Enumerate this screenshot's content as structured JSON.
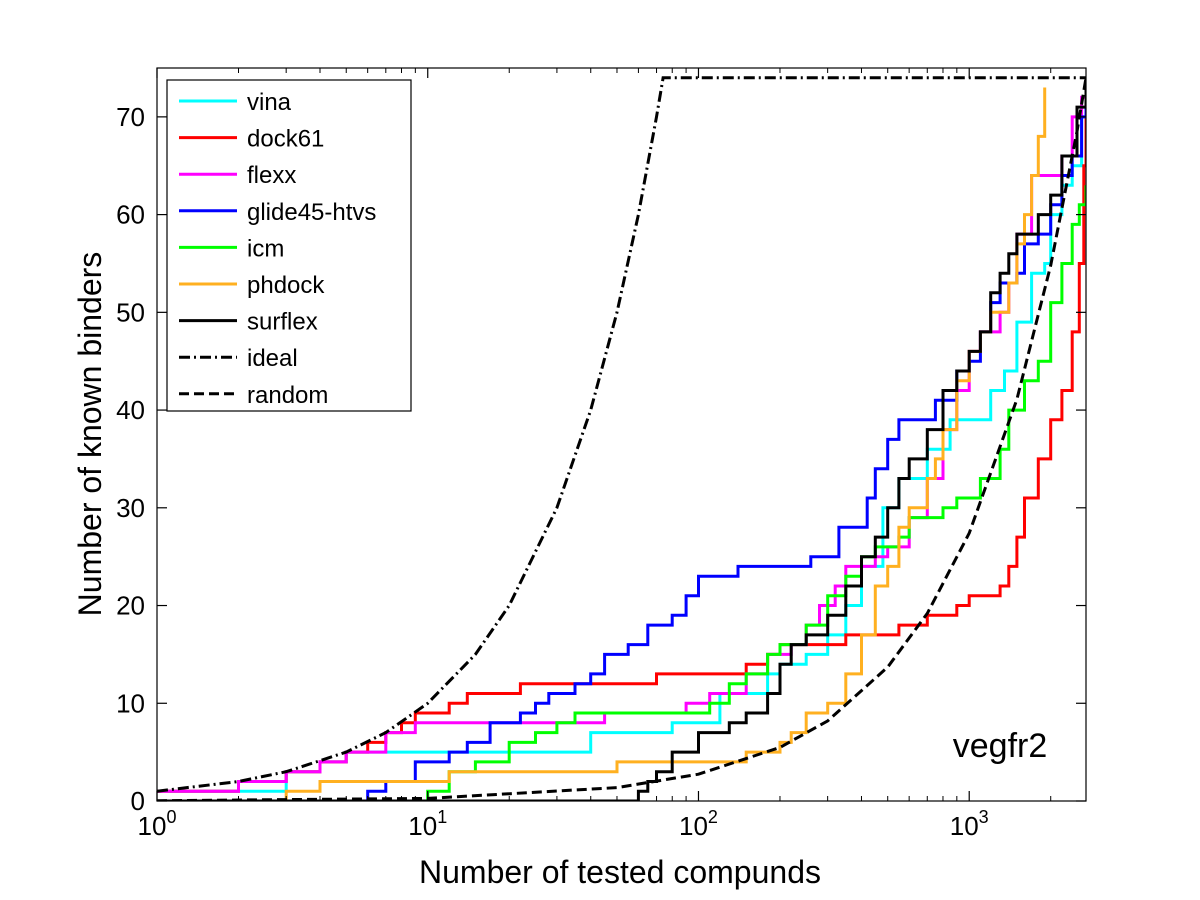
{
  "chart_data": {
    "type": "line",
    "title": "",
    "xlabel": "Number of tested compunds",
    "ylabel": "Number of known binders",
    "annotation": "vegfr2",
    "x_scale": "log",
    "xlim": [
      1,
      2700
    ],
    "ylim": [
      0,
      75
    ],
    "x_ticks": [
      {
        "value": 1,
        "base": "10",
        "exp": "0"
      },
      {
        "value": 10,
        "base": "10",
        "exp": "1"
      },
      {
        "value": 100,
        "base": "10",
        "exp": "2"
      },
      {
        "value": 1000,
        "base": "10",
        "exp": "3"
      }
    ],
    "y_ticks": [
      0,
      10,
      20,
      30,
      40,
      50,
      60,
      70
    ],
    "grid": false,
    "legend_position": "top-left",
    "series": [
      {
        "name": "vina",
        "color": "#00ffff",
        "dash": "solid",
        "points": [
          [
            1,
            1
          ],
          [
            3,
            3
          ],
          [
            4,
            4
          ],
          [
            5,
            5
          ],
          [
            20,
            5
          ],
          [
            40,
            7
          ],
          [
            60,
            7
          ],
          [
            80,
            8
          ],
          [
            100,
            8
          ],
          [
            120,
            11
          ],
          [
            150,
            11
          ],
          [
            180,
            13
          ],
          [
            200,
            14
          ],
          [
            250,
            15
          ],
          [
            300,
            17
          ],
          [
            350,
            20
          ],
          [
            400,
            24
          ],
          [
            450,
            24
          ],
          [
            480,
            30
          ],
          [
            550,
            33
          ],
          [
            700,
            36
          ],
          [
            850,
            39
          ],
          [
            1000,
            39
          ],
          [
            1200,
            42
          ],
          [
            1350,
            44
          ],
          [
            1500,
            49
          ],
          [
            1700,
            54
          ],
          [
            1900,
            55
          ],
          [
            2000,
            60
          ],
          [
            2200,
            63
          ],
          [
            2400,
            65
          ],
          [
            2600,
            70
          ],
          [
            2700,
            73
          ]
        ]
      },
      {
        "name": "dock61",
        "color": "#ff0000",
        "dash": "solid",
        "points": [
          [
            1,
            1
          ],
          [
            2,
            2
          ],
          [
            3,
            3
          ],
          [
            4,
            4
          ],
          [
            5,
            5
          ],
          [
            6,
            6
          ],
          [
            7,
            7
          ],
          [
            8,
            8
          ],
          [
            9,
            9
          ],
          [
            12,
            10
          ],
          [
            14,
            11
          ],
          [
            18,
            11
          ],
          [
            22,
            12
          ],
          [
            40,
            12
          ],
          [
            70,
            13
          ],
          [
            130,
            13
          ],
          [
            150,
            14
          ],
          [
            180,
            15
          ],
          [
            200,
            16
          ],
          [
            300,
            16
          ],
          [
            350,
            17
          ],
          [
            500,
            17
          ],
          [
            550,
            18
          ],
          [
            700,
            19
          ],
          [
            800,
            19
          ],
          [
            900,
            20
          ],
          [
            1000,
            21
          ],
          [
            1200,
            21
          ],
          [
            1300,
            22
          ],
          [
            1400,
            24
          ],
          [
            1500,
            27
          ],
          [
            1600,
            31
          ],
          [
            1800,
            35
          ],
          [
            2000,
            39
          ],
          [
            2200,
            42
          ],
          [
            2400,
            48
          ],
          [
            2550,
            55
          ],
          [
            2650,
            65
          ],
          [
            2700,
            74
          ]
        ]
      },
      {
        "name": "flexx",
        "color": "#ff00ff",
        "dash": "solid",
        "points": [
          [
            1,
            1
          ],
          [
            2,
            2
          ],
          [
            3,
            3
          ],
          [
            4,
            4
          ],
          [
            5,
            5
          ],
          [
            7,
            7
          ],
          [
            9,
            8
          ],
          [
            40,
            8
          ],
          [
            45,
            9
          ],
          [
            80,
            9
          ],
          [
            90,
            10
          ],
          [
            110,
            11
          ],
          [
            150,
            13
          ],
          [
            180,
            15
          ],
          [
            220,
            16
          ],
          [
            250,
            18
          ],
          [
            280,
            20
          ],
          [
            320,
            22
          ],
          [
            350,
            24
          ],
          [
            450,
            25
          ],
          [
            500,
            26
          ],
          [
            600,
            29
          ],
          [
            700,
            33
          ],
          [
            800,
            38
          ],
          [
            900,
            42
          ],
          [
            1000,
            46
          ],
          [
            1100,
            48
          ],
          [
            1300,
            50
          ],
          [
            1400,
            53
          ],
          [
            1500,
            58
          ],
          [
            1700,
            64
          ],
          [
            2000,
            64
          ],
          [
            2200,
            66
          ],
          [
            2400,
            70
          ],
          [
            2600,
            72
          ],
          [
            2700,
            74
          ]
        ]
      },
      {
        "name": "glide45-htvs",
        "color": "#0000ff",
        "dash": "solid",
        "points": [
          [
            1,
            0
          ],
          [
            5,
            0
          ],
          [
            6,
            1
          ],
          [
            7,
            2
          ],
          [
            9,
            4
          ],
          [
            12,
            5
          ],
          [
            14,
            6
          ],
          [
            17,
            8
          ],
          [
            22,
            9
          ],
          [
            25,
            10
          ],
          [
            28,
            11
          ],
          [
            35,
            12
          ],
          [
            40,
            13
          ],
          [
            45,
            15
          ],
          [
            55,
            16
          ],
          [
            65,
            18
          ],
          [
            80,
            19
          ],
          [
            90,
            21
          ],
          [
            100,
            23
          ],
          [
            120,
            23
          ],
          [
            140,
            24
          ],
          [
            250,
            24
          ],
          [
            260,
            25
          ],
          [
            300,
            25
          ],
          [
            330,
            28
          ],
          [
            400,
            28
          ],
          [
            420,
            31
          ],
          [
            450,
            34
          ],
          [
            500,
            37
          ],
          [
            550,
            39
          ],
          [
            700,
            39
          ],
          [
            750,
            41
          ],
          [
            900,
            44
          ],
          [
            1000,
            45
          ],
          [
            1100,
            48
          ],
          [
            1200,
            51
          ],
          [
            1300,
            53
          ],
          [
            1500,
            54
          ],
          [
            1600,
            57
          ],
          [
            1800,
            58
          ],
          [
            2000,
            61
          ],
          [
            2200,
            64
          ],
          [
            2400,
            66
          ],
          [
            2600,
            70
          ],
          [
            2700,
            74
          ]
        ]
      },
      {
        "name": "icm",
        "color": "#00ff00",
        "dash": "solid",
        "points": [
          [
            1,
            0
          ],
          [
            9,
            0
          ],
          [
            10,
            1
          ],
          [
            12,
            3
          ],
          [
            15,
            4
          ],
          [
            20,
            6
          ],
          [
            25,
            7
          ],
          [
            30,
            8
          ],
          [
            35,
            9
          ],
          [
            90,
            9
          ],
          [
            110,
            10
          ],
          [
            130,
            12
          ],
          [
            150,
            13
          ],
          [
            180,
            15
          ],
          [
            200,
            16
          ],
          [
            250,
            18
          ],
          [
            300,
            21
          ],
          [
            350,
            23
          ],
          [
            400,
            25
          ],
          [
            450,
            26
          ],
          [
            550,
            27
          ],
          [
            600,
            29
          ],
          [
            800,
            30
          ],
          [
            900,
            31
          ],
          [
            1100,
            33
          ],
          [
            1300,
            36
          ],
          [
            1400,
            40
          ],
          [
            1600,
            43
          ],
          [
            1800,
            45
          ],
          [
            2000,
            51
          ],
          [
            2200,
            55
          ],
          [
            2400,
            59
          ],
          [
            2550,
            61
          ],
          [
            2700,
            63
          ]
        ]
      },
      {
        "name": "phdock",
        "color": "#ffb020",
        "dash": "solid",
        "points": [
          [
            1,
            0
          ],
          [
            3,
            1
          ],
          [
            4,
            2
          ],
          [
            10,
            2
          ],
          [
            12,
            3
          ],
          [
            20,
            3
          ],
          [
            25,
            3
          ],
          [
            50,
            4
          ],
          [
            100,
            4
          ],
          [
            120,
            4
          ],
          [
            150,
            5
          ],
          [
            180,
            5
          ],
          [
            200,
            6
          ],
          [
            220,
            7
          ],
          [
            250,
            9
          ],
          [
            300,
            10
          ],
          [
            350,
            13
          ],
          [
            400,
            17
          ],
          [
            450,
            22
          ],
          [
            500,
            24
          ],
          [
            550,
            28
          ],
          [
            600,
            30
          ],
          [
            700,
            33
          ],
          [
            750,
            35
          ],
          [
            800,
            38
          ],
          [
            900,
            43
          ],
          [
            1000,
            46
          ],
          [
            1100,
            48
          ],
          [
            1200,
            50
          ],
          [
            1400,
            53
          ],
          [
            1500,
            57
          ],
          [
            1600,
            60
          ],
          [
            1700,
            64
          ],
          [
            1800,
            68
          ],
          [
            1900,
            73
          ]
        ]
      },
      {
        "name": "surflex",
        "color": "#000000",
        "dash": "solid",
        "points": [
          [
            1,
            0
          ],
          [
            55,
            0
          ],
          [
            60,
            1
          ],
          [
            65,
            2
          ],
          [
            70,
            3
          ],
          [
            80,
            5
          ],
          [
            100,
            7
          ],
          [
            130,
            8
          ],
          [
            150,
            9
          ],
          [
            180,
            11
          ],
          [
            200,
            14
          ],
          [
            220,
            16
          ],
          [
            250,
            17
          ],
          [
            300,
            19
          ],
          [
            350,
            22
          ],
          [
            400,
            25
          ],
          [
            450,
            27
          ],
          [
            500,
            30
          ],
          [
            550,
            33
          ],
          [
            600,
            35
          ],
          [
            700,
            38
          ],
          [
            800,
            42
          ],
          [
            900,
            44
          ],
          [
            1000,
            46
          ],
          [
            1100,
            48
          ],
          [
            1200,
            52
          ],
          [
            1300,
            54
          ],
          [
            1400,
            56
          ],
          [
            1500,
            58
          ],
          [
            1700,
            58
          ],
          [
            1800,
            60
          ],
          [
            2000,
            62
          ],
          [
            2200,
            66
          ],
          [
            2500,
            71
          ],
          [
            2700,
            74
          ]
        ]
      },
      {
        "name": "ideal",
        "color": "#000000",
        "dash": "dashdot",
        "points": [
          [
            1,
            1
          ],
          [
            2,
            2
          ],
          [
            3,
            3
          ],
          [
            5,
            5
          ],
          [
            7,
            7
          ],
          [
            10,
            10
          ],
          [
            15,
            15
          ],
          [
            20,
            20
          ],
          [
            30,
            30
          ],
          [
            40,
            40
          ],
          [
            50,
            50
          ],
          [
            60,
            60
          ],
          [
            70,
            70
          ],
          [
            74,
            74
          ],
          [
            2700,
            74
          ]
        ]
      },
      {
        "name": "random",
        "color": "#000000",
        "dash": "dashed",
        "points": [
          [
            1,
            0.03
          ],
          [
            10,
            0.27
          ],
          [
            50,
            1.37
          ],
          [
            100,
            2.74
          ],
          [
            200,
            5.48
          ],
          [
            300,
            8.2
          ],
          [
            500,
            13.7
          ],
          [
            700,
            19.2
          ],
          [
            1000,
            27.4
          ],
          [
            1500,
            41.1
          ],
          [
            2000,
            54.8
          ],
          [
            2500,
            68.5
          ],
          [
            2700,
            74
          ]
        ]
      }
    ]
  }
}
